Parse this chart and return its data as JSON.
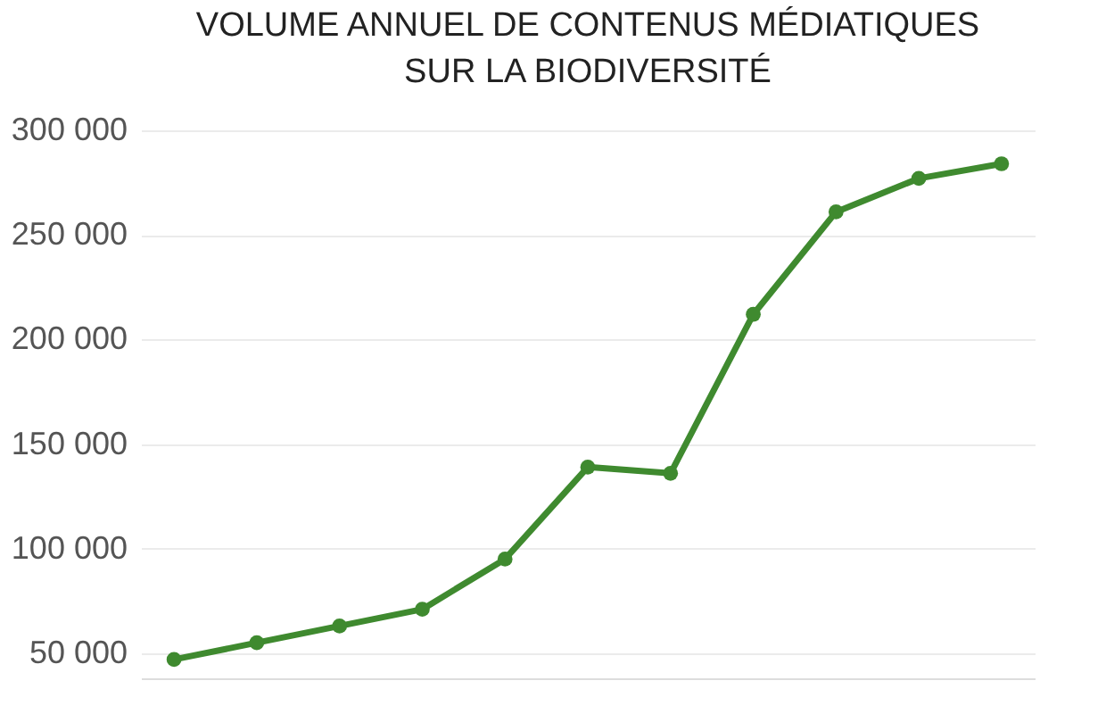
{
  "chart_data": {
    "type": "line",
    "title": [
      "VOLUME ANNUEL DE CONTENUS MÉDIATIQUES",
      "SUR LA BIODIVERSITÉ"
    ],
    "categories": [
      null,
      null,
      null,
      null,
      null,
      null,
      null,
      null,
      null,
      null,
      null
    ],
    "series": [
      {
        "color": "#3f8a2f",
        "values": [
          47000,
          55000,
          63000,
          71000,
          95000,
          139000,
          136000,
          212000,
          261000,
          277000,
          284000
        ]
      }
    ],
    "ylim": [
      38000,
      300000
    ],
    "yticks": [
      {
        "value": 50000,
        "label": "50 000"
      },
      {
        "value": 100000,
        "label": "100 000"
      },
      {
        "value": 150000,
        "label": "150 000"
      },
      {
        "value": 200000,
        "label": "200 000"
      },
      {
        "value": 250000,
        "label": "250 000"
      },
      {
        "value": 300000,
        "label": "300 000"
      }
    ],
    "grid": "y",
    "marker": "circle",
    "line_style": "solid",
    "tick_labels": "y"
  }
}
